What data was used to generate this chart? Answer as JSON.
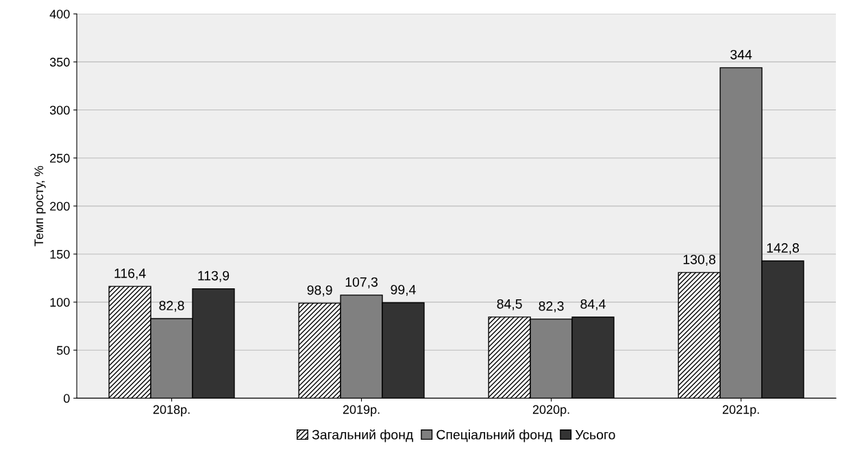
{
  "chart_data": {
    "type": "bar",
    "ylabel": "Темп росту, %",
    "categories": [
      "2018р.",
      "2019р.",
      "2020р.",
      "2021р."
    ],
    "series": [
      {
        "name": "Загальний фонд",
        "color": "#000000",
        "values": [
          116.4,
          98.9,
          84.5,
          130.8
        ],
        "value_labels": [
          "116,4",
          "98,9",
          "84,5",
          "130,8"
        ]
      },
      {
        "name": "Спеціальний фонд",
        "color": "#808080",
        "values": [
          82.8,
          107.3,
          82.3,
          344
        ],
        "value_labels": [
          "82,8",
          "107,3",
          "82,3",
          "344"
        ]
      },
      {
        "name": "Усього",
        "color": "#333333",
        "values": [
          113.9,
          99.4,
          84.4,
          142.8
        ],
        "value_labels": [
          "113,9",
          "99,4",
          "84,4",
          "142,8"
        ]
      }
    ],
    "ylim": [
      0,
      400
    ],
    "yticks": [
      0,
      50,
      100,
      150,
      200,
      250,
      300,
      350,
      400
    ],
    "grid": "y",
    "legend": "bottom"
  }
}
